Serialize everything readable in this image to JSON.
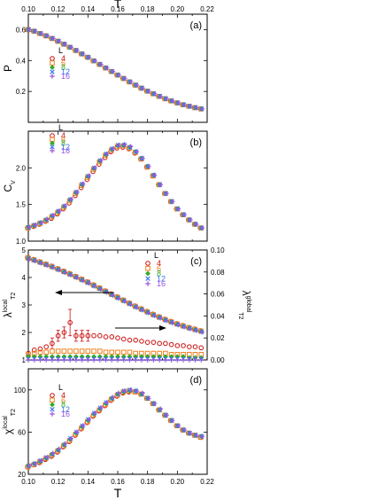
{
  "x_label_top": "T",
  "x_label_bottom": "T",
  "legend_colors": {
    "4": "#cc1111",
    "6": "#f08020",
    "8": "#33aa22",
    "12": "#3377ee",
    "16": "#9955dd"
  },
  "chart_data": [
    {
      "type": "scatter",
      "panel": "(a)",
      "ylabel": "P",
      "xlim": [
        0.1,
        0.22
      ],
      "ylim": [
        0.0,
        0.7
      ],
      "xticks": [
        "0.10",
        "0.12",
        "0.14",
        "0.16",
        "0.18",
        "0.20",
        "0.22"
      ],
      "yticks": [
        "0.2",
        "0.4",
        "0.6"
      ],
      "legend_title": "L",
      "legend": [
        "4",
        "6",
        "8",
        "12",
        "16"
      ],
      "x": [
        0.1,
        0.104,
        0.108,
        0.112,
        0.116,
        0.12,
        0.124,
        0.128,
        0.132,
        0.136,
        0.14,
        0.144,
        0.148,
        0.152,
        0.156,
        0.16,
        0.164,
        0.168,
        0.172,
        0.176,
        0.18,
        0.184,
        0.188,
        0.192,
        0.196,
        0.2,
        0.204,
        0.208,
        0.212,
        0.216
      ],
      "series": [
        {
          "name": "4",
          "values": [
            0.6,
            0.59,
            0.575,
            0.56,
            0.543,
            0.525,
            0.506,
            0.486,
            0.465,
            0.443,
            0.421,
            0.398,
            0.375,
            0.352,
            0.329,
            0.306,
            0.284,
            0.262,
            0.241,
            0.221,
            0.202,
            0.185,
            0.168,
            0.153,
            0.139,
            0.126,
            0.114,
            0.104,
            0.095,
            0.087
          ]
        },
        {
          "name": "6",
          "values": [
            0.6,
            0.59,
            0.575,
            0.56,
            0.543,
            0.525,
            0.506,
            0.486,
            0.465,
            0.443,
            0.421,
            0.398,
            0.375,
            0.352,
            0.329,
            0.306,
            0.284,
            0.262,
            0.241,
            0.221,
            0.202,
            0.185,
            0.168,
            0.153,
            0.139,
            0.126,
            0.114,
            0.104,
            0.095,
            0.087
          ]
        },
        {
          "name": "8",
          "values": [
            0.6,
            0.59,
            0.575,
            0.56,
            0.543,
            0.525,
            0.506,
            0.486,
            0.465,
            0.443,
            0.421,
            0.398,
            0.375,
            0.352,
            0.329,
            0.306,
            0.284,
            0.262,
            0.241,
            0.221,
            0.202,
            0.185,
            0.168,
            0.153,
            0.139,
            0.126,
            0.114,
            0.104,
            0.095,
            0.087
          ]
        },
        {
          "name": "12",
          "values": [
            0.6,
            0.59,
            0.575,
            0.56,
            0.543,
            0.525,
            0.506,
            0.486,
            0.465,
            0.443,
            0.421,
            0.398,
            0.375,
            0.352,
            0.329,
            0.306,
            0.284,
            0.262,
            0.241,
            0.221,
            0.202,
            0.185,
            0.168,
            0.153,
            0.139,
            0.126,
            0.114,
            0.104,
            0.095,
            0.087
          ]
        },
        {
          "name": "16",
          "values": [
            0.6,
            0.59,
            0.575,
            0.56,
            0.543,
            0.525,
            0.506,
            0.486,
            0.465,
            0.443,
            0.421,
            0.398,
            0.375,
            0.352,
            0.329,
            0.306,
            0.284,
            0.262,
            0.241,
            0.221,
            0.202,
            0.185,
            0.168,
            0.153,
            0.139,
            0.126,
            0.114,
            0.104,
            0.095,
            0.087
          ]
        }
      ]
    },
    {
      "type": "scatter",
      "panel": "(b)",
      "ylabel": "C",
      "ylabel_sub": "V",
      "xlim": [
        0.1,
        0.22
      ],
      "ylim": [
        1.0,
        2.5
      ],
      "yticks": [
        "1.0",
        "1.5",
        "2.0"
      ],
      "legend_title": "L",
      "legend": [
        "4",
        "6",
        "8",
        "12",
        "16"
      ],
      "x": [
        0.1,
        0.104,
        0.108,
        0.112,
        0.116,
        0.12,
        0.124,
        0.128,
        0.132,
        0.136,
        0.14,
        0.144,
        0.148,
        0.152,
        0.156,
        0.16,
        0.164,
        0.168,
        0.172,
        0.176,
        0.18,
        0.184,
        0.188,
        0.192,
        0.196,
        0.2,
        0.204,
        0.208,
        0.212,
        0.216
      ],
      "series": [
        {
          "name": "4",
          "values": [
            1.18,
            1.2,
            1.23,
            1.27,
            1.31,
            1.37,
            1.44,
            1.52,
            1.62,
            1.73,
            1.84,
            1.95,
            2.05,
            2.14,
            2.22,
            2.27,
            2.28,
            2.26,
            2.2,
            2.12,
            2.01,
            1.89,
            1.77,
            1.65,
            1.54,
            1.44,
            1.36,
            1.29,
            1.23,
            1.18
          ]
        },
        {
          "name": "6",
          "values": [
            1.18,
            1.21,
            1.24,
            1.28,
            1.33,
            1.39,
            1.46,
            1.55,
            1.65,
            1.76,
            1.87,
            1.98,
            2.08,
            2.17,
            2.24,
            2.29,
            2.3,
            2.27,
            2.21,
            2.12,
            2.01,
            1.89,
            1.77,
            1.65,
            1.54,
            1.44,
            1.36,
            1.29,
            1.23,
            1.18
          ]
        },
        {
          "name": "8",
          "values": [
            1.19,
            1.21,
            1.25,
            1.29,
            1.34,
            1.4,
            1.47,
            1.56,
            1.66,
            1.77,
            1.88,
            1.99,
            2.09,
            2.18,
            2.25,
            2.3,
            2.31,
            2.28,
            2.22,
            2.13,
            2.02,
            1.9,
            1.77,
            1.65,
            1.54,
            1.44,
            1.36,
            1.29,
            1.23,
            1.18
          ]
        },
        {
          "name": "12",
          "values": [
            1.19,
            1.22,
            1.25,
            1.29,
            1.35,
            1.41,
            1.48,
            1.57,
            1.67,
            1.78,
            1.89,
            2.0,
            2.1,
            2.19,
            2.26,
            2.31,
            2.31,
            2.28,
            2.22,
            2.13,
            2.02,
            1.9,
            1.77,
            1.65,
            1.54,
            1.44,
            1.36,
            1.29,
            1.23,
            1.18
          ]
        },
        {
          "name": "16",
          "values": [
            1.19,
            1.22,
            1.25,
            1.3,
            1.35,
            1.41,
            1.48,
            1.57,
            1.67,
            1.78,
            1.89,
            2.0,
            2.1,
            2.19,
            2.26,
            2.31,
            2.32,
            2.29,
            2.22,
            2.13,
            2.02,
            1.9,
            1.77,
            1.65,
            1.54,
            1.44,
            1.36,
            1.29,
            1.23,
            1.18
          ]
        }
      ]
    },
    {
      "type": "scatter",
      "panel": "(c)",
      "ylabel": "λ",
      "ylabel_sup": "local",
      "ylabel_sub": "T2",
      "ylabel_right": "λ",
      "ylabel_right_sup": "global",
      "ylabel_right_sub": "T2",
      "xlim": [
        0.1,
        0.22
      ],
      "ylim": [
        1.0,
        5.0
      ],
      "ylim_right": [
        0.0,
        0.1
      ],
      "yticks": [
        "1",
        "2",
        "3",
        "4",
        "5"
      ],
      "yticks_right": [
        "0.00",
        "0.02",
        "0.04",
        "0.06",
        "0.08",
        "0.10"
      ],
      "legend_title": "L",
      "legend": [
        "4",
        "6",
        "8",
        "12",
        "16"
      ],
      "x": [
        0.1,
        0.104,
        0.108,
        0.112,
        0.116,
        0.12,
        0.124,
        0.128,
        0.132,
        0.136,
        0.14,
        0.144,
        0.148,
        0.152,
        0.156,
        0.16,
        0.164,
        0.168,
        0.172,
        0.176,
        0.18,
        0.184,
        0.188,
        0.192,
        0.196,
        0.2,
        0.204,
        0.208,
        0.212,
        0.216
      ],
      "local": [
        4.7,
        4.63,
        4.55,
        4.47,
        4.39,
        4.3,
        4.21,
        4.12,
        4.02,
        3.92,
        3.82,
        3.71,
        3.6,
        3.49,
        3.38,
        3.27,
        3.16,
        3.05,
        2.94,
        2.84,
        2.74,
        2.64,
        2.55,
        2.46,
        2.38,
        2.3,
        2.23,
        2.16,
        2.1,
        2.04
      ],
      "series_global": [
        {
          "name": "4",
          "values": [
            0.006,
            0.009,
            0.01,
            0.012,
            0.015,
            0.022,
            0.025,
            0.034,
            0.022,
            0.022,
            0.022,
            0.022,
            0.022,
            0.021,
            0.021,
            0.02,
            0.019,
            0.018,
            0.018,
            0.017,
            0.016,
            0.016,
            0.015,
            0.015,
            0.014,
            0.013,
            0.013,
            0.012,
            0.012,
            0.011
          ]
        },
        {
          "name": "6",
          "values": [
            0.005,
            0.006,
            0.007,
            0.007,
            0.008,
            0.008,
            0.008,
            0.008,
            0.008,
            0.008,
            0.008,
            0.008,
            0.008,
            0.007,
            0.007,
            0.007,
            0.007,
            0.007,
            0.006,
            0.006,
            0.006,
            0.006,
            0.006,
            0.006,
            0.005,
            0.005,
            0.005,
            0.005,
            0.005,
            0.005
          ]
        },
        {
          "name": "8",
          "values": [
            0.003,
            0.003,
            0.003,
            0.003,
            0.003,
            0.003,
            0.003,
            0.003,
            0.003,
            0.003,
            0.003,
            0.003,
            0.003,
            0.003,
            0.003,
            0.003,
            0.003,
            0.003,
            0.003,
            0.003,
            0.003,
            0.003,
            0.003,
            0.003,
            0.003,
            0.003,
            0.003,
            0.002,
            0.002,
            0.002
          ]
        },
        {
          "name": "12",
          "values": [
            0.001,
            0.001,
            0.001,
            0.001,
            0.001,
            0.001,
            0.001,
            0.001,
            0.001,
            0.001,
            0.001,
            0.001,
            0.001,
            0.001,
            0.001,
            0.001,
            0.001,
            0.001,
            0.001,
            0.001,
            0.001,
            0.001,
            0.001,
            0.001,
            0.001,
            0.001,
            0.001,
            0.001,
            0.001,
            0.001
          ]
        },
        {
          "name": "16",
          "values": [
            0.0,
            0.0,
            0.0,
            0.0,
            0.0,
            0.0,
            0.0,
            0.0,
            0.0,
            0.0,
            0.0,
            0.0,
            0.0,
            0.0,
            0.0,
            0.0,
            0.0,
            0.0,
            0.0,
            0.0,
            0.0,
            0.0,
            0.0,
            0.0,
            0.0,
            0.0,
            0.0,
            0.0,
            0.0,
            0.0
          ]
        }
      ]
    },
    {
      "type": "scatter",
      "panel": "(d)",
      "ylabel": "χ",
      "ylabel_sup": "local",
      "ylabel_sub": "T2",
      "xlim": [
        0.1,
        0.22
      ],
      "ylim": [
        20,
        120
      ],
      "xticks": [
        "0.10",
        "0.12",
        "0.14",
        "0.16",
        "0.18",
        "0.20",
        "0.22"
      ],
      "yticks": [
        "20",
        "60",
        "100"
      ],
      "legend_title": "L",
      "legend": [
        "4",
        "6",
        "8",
        "12",
        "16"
      ],
      "x": [
        0.1,
        0.104,
        0.108,
        0.112,
        0.116,
        0.12,
        0.124,
        0.128,
        0.132,
        0.136,
        0.14,
        0.144,
        0.148,
        0.152,
        0.156,
        0.16,
        0.164,
        0.168,
        0.172,
        0.176,
        0.18,
        0.184,
        0.188,
        0.192,
        0.196,
        0.2,
        0.204,
        0.208,
        0.212,
        0.216
      ],
      "series": [
        {
          "name": "4",
          "values": [
            27,
            29,
            31,
            34,
            37,
            41,
            46,
            51,
            57,
            63,
            69,
            75,
            80,
            85,
            90,
            94,
            97,
            98,
            98,
            96,
            92,
            87,
            81,
            76,
            71,
            66,
            62,
            59,
            57,
            55
          ]
        },
        {
          "name": "6",
          "values": [
            27,
            29,
            32,
            35,
            38,
            42,
            47,
            52,
            58,
            64,
            70,
            76,
            81,
            86,
            91,
            95,
            98,
            99,
            98,
            96,
            92,
            87,
            81,
            76,
            71,
            66,
            62,
            59,
            57,
            55
          ]
        },
        {
          "name": "8",
          "values": [
            28,
            30,
            32,
            35,
            39,
            43,
            48,
            53,
            59,
            65,
            71,
            77,
            82,
            87,
            92,
            96,
            98,
            99,
            99,
            96,
            92,
            87,
            81,
            76,
            71,
            66,
            62,
            59,
            57,
            56
          ]
        },
        {
          "name": "12",
          "values": [
            28,
            30,
            33,
            36,
            39,
            43,
            48,
            54,
            60,
            66,
            72,
            78,
            83,
            88,
            92,
            96,
            99,
            100,
            99,
            96,
            92,
            87,
            81,
            76,
            71,
            66,
            62,
            59,
            57,
            56
          ]
        },
        {
          "name": "16",
          "values": [
            28,
            30,
            33,
            36,
            40,
            44,
            49,
            54,
            60,
            66,
            72,
            78,
            83,
            88,
            93,
            97,
            99,
            100,
            99,
            97,
            92,
            87,
            82,
            76,
            71,
            66,
            62,
            59,
            57,
            56
          ]
        }
      ]
    }
  ]
}
